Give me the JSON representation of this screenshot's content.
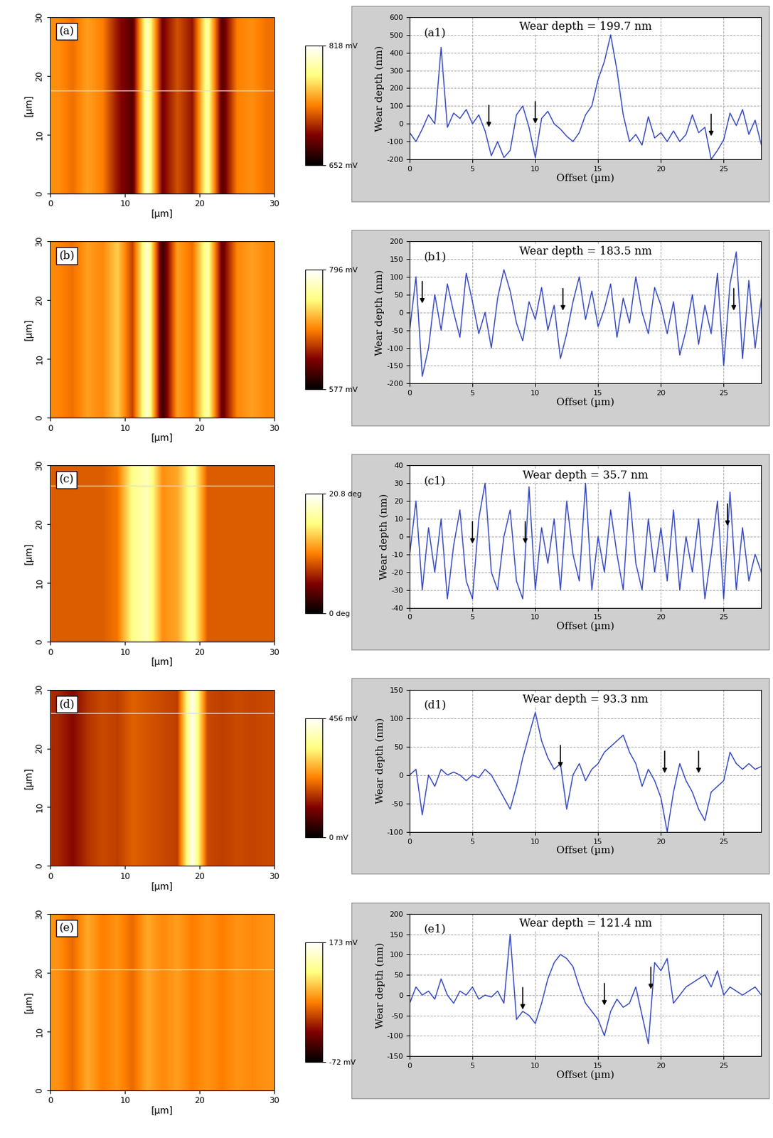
{
  "chart_data": [
    {
      "type": "heatmap",
      "label": "(a)",
      "x_label": "[µm]",
      "y_label": "[µm]",
      "xlim": [
        0,
        30
      ],
      "ylim": [
        0,
        30
      ],
      "xticks": [
        0,
        10,
        20,
        30
      ],
      "yticks": [
        0,
        10,
        20,
        30
      ],
      "cells": [
        [
          740,
          730,
          745,
          735,
          700,
          680,
          800,
          690,
          720,
          700,
          790,
          680,
          735,
          740,
          730
        ]
      ],
      "colorbar": {
        "range": [
          652,
          818
        ],
        "ticks": [
          {
            "value": 818,
            "label": "818 mV"
          },
          {
            "value": 652,
            "label": "652 mV"
          }
        ]
      },
      "scan_line": 17.5
    },
    {
      "type": "line",
      "label": "(a1)",
      "annotation": "Wear depth = 199.7 nm",
      "x_label": "Offset (µm)",
      "y_label": "Wear depth (nm)",
      "color": "#3346c0",
      "grid": true,
      "xlim": [
        0,
        28
      ],
      "ylim": [
        -200,
        600
      ],
      "xticks": [
        0,
        5,
        10,
        15,
        20,
        25
      ],
      "yticks": [
        -200,
        -100,
        0,
        100,
        200,
        300,
        400,
        500,
        600
      ],
      "x": [
        0,
        0.5,
        1,
        1.5,
        2,
        2.5,
        3,
        3.5,
        4,
        4.5,
        5,
        5.5,
        6,
        6.5,
        7,
        7.5,
        8,
        8.5,
        9,
        9.5,
        10,
        10.5,
        11,
        11.5,
        12,
        12.5,
        13,
        13.5,
        14,
        14.5,
        15,
        15.5,
        16,
        16.5,
        17,
        17.5,
        18,
        18.5,
        19,
        19.5,
        20,
        20.5,
        21,
        21.5,
        22,
        22.5,
        23,
        23.5,
        24,
        24.5,
        25,
        25.5,
        26,
        26.5,
        27,
        27.5,
        28
      ],
      "values": [
        -50,
        -100,
        -30,
        50,
        0,
        430,
        -20,
        60,
        30,
        80,
        0,
        50,
        -40,
        -180,
        -100,
        -190,
        -150,
        50,
        100,
        -20,
        -190,
        30,
        70,
        0,
        -30,
        -70,
        -100,
        -50,
        50,
        100,
        250,
        350,
        500,
        300,
        50,
        -100,
        -60,
        -120,
        40,
        -80,
        -50,
        -100,
        -40,
        -100,
        -60,
        50,
        -50,
        -20,
        -200,
        -150,
        -90,
        60,
        -10,
        80,
        -60,
        20,
        -120
      ],
      "arrows": [
        [
          6.3,
          -30
        ],
        [
          10,
          -10
        ],
        [
          24,
          -80
        ]
      ]
    },
    {
      "type": "heatmap",
      "label": "(b)",
      "x_label": "[µm]",
      "y_label": "[µm]",
      "xlim": [
        0,
        30
      ],
      "ylim": [
        0,
        30
      ],
      "xticks": [
        0,
        10,
        20,
        30
      ],
      "yticks": [
        0,
        10,
        20,
        30
      ],
      "cells": [
        [
          690,
          680,
          700,
          690,
          720,
          660,
          780,
          600,
          700,
          680,
          760,
          620,
          690,
          700,
          690
        ]
      ],
      "colorbar": {
        "range": [
          577,
          796
        ],
        "ticks": [
          {
            "value": 796,
            "label": "796 mV"
          },
          {
            "value": 577,
            "label": "577 mV"
          }
        ]
      }
    },
    {
      "type": "line",
      "label": "(b1)",
      "annotation": "Wear depth = 183.5 nm",
      "x_label": "Offset (µm)",
      "y_label": "Wear depth (nm)",
      "color": "#3346c0",
      "grid": true,
      "xlim": [
        0,
        28
      ],
      "ylim": [
        -200,
        200
      ],
      "xticks": [
        0,
        5,
        10,
        15,
        20,
        25
      ],
      "yticks": [
        -200,
        -150,
        -100,
        -50,
        0,
        50,
        100,
        150,
        200
      ],
      "x": [
        0,
        0.5,
        1,
        1.5,
        2,
        2.5,
        3,
        3.5,
        4,
        4.5,
        5,
        5.5,
        6,
        6.5,
        7,
        7.5,
        8,
        8.5,
        9,
        9.5,
        10,
        10.5,
        11,
        11.5,
        12,
        12.5,
        13,
        13.5,
        14,
        14.5,
        15,
        15.5,
        16,
        16.5,
        17,
        17.5,
        18,
        18.5,
        19,
        19.5,
        20,
        20.5,
        21,
        21.5,
        22,
        22.5,
        23,
        23.5,
        24,
        24.5,
        25,
        25.5,
        26,
        26.5,
        27,
        27.5,
        28
      ],
      "values": [
        -50,
        100,
        -180,
        -100,
        50,
        -50,
        80,
        0,
        -70,
        110,
        30,
        -60,
        0,
        -100,
        40,
        120,
        60,
        -30,
        -80,
        30,
        -20,
        70,
        -50,
        20,
        -130,
        -60,
        30,
        100,
        -20,
        60,
        -40,
        10,
        80,
        -70,
        40,
        -30,
        100,
        0,
        -60,
        70,
        20,
        -60,
        30,
        -120,
        -50,
        50,
        -90,
        20,
        -60,
        110,
        -150,
        80,
        170,
        -130,
        90,
        -100,
        40
      ],
      "arrows": [
        [
          1,
          20
        ],
        [
          12.2,
          0
        ],
        [
          25.8,
          0
        ]
      ]
    },
    {
      "type": "heatmap",
      "label": "(c)",
      "x_label": "[µm]",
      "y_label": "[µm]",
      "xlim": [
        0,
        30
      ],
      "ylim": [
        0,
        30
      ],
      "xticks": [
        0,
        10,
        20,
        30
      ],
      "yticks": [
        0,
        10,
        20,
        30
      ],
      "cells": [
        [
          9,
          9,
          9,
          9,
          10,
          16,
          18,
          11,
          12,
          17,
          9,
          9,
          9,
          9,
          9
        ]
      ],
      "colorbar": {
        "range": [
          0,
          20.8
        ],
        "ticks": [
          {
            "value": 20.8,
            "label": "20.8 deg"
          },
          {
            "value": 0,
            "label": "0 deg"
          }
        ]
      },
      "scan_line": 26.5
    },
    {
      "type": "line",
      "label": "(c1)",
      "annotation": "Wear depth = 35.7 nm",
      "x_label": "Offset (µm)",
      "y_label": "Wear depth (nm)",
      "color": "#3346c0",
      "grid": true,
      "xlim": [
        0,
        28
      ],
      "ylim": [
        -40,
        40
      ],
      "xticks": [
        0,
        5,
        10,
        15,
        20,
        25
      ],
      "yticks": [
        -40,
        -30,
        -20,
        -10,
        0,
        10,
        20,
        30,
        40
      ],
      "x": [
        0,
        0.5,
        1,
        1.5,
        2,
        2.5,
        3,
        3.5,
        4,
        4.5,
        5,
        5.5,
        6,
        6.5,
        7,
        7.5,
        8,
        8.5,
        9,
        9.5,
        10,
        10.5,
        11,
        11.5,
        12,
        12.5,
        13,
        13.5,
        14,
        14.5,
        15,
        15.5,
        16,
        16.5,
        17,
        17.5,
        18,
        18.5,
        19,
        19.5,
        20,
        20.5,
        21,
        21.5,
        22,
        22.5,
        23,
        23.5,
        24,
        24.5,
        25,
        25.5,
        26,
        26.5,
        27,
        27.5,
        28
      ],
      "values": [
        -10,
        20,
        -30,
        5,
        -20,
        10,
        -35,
        -5,
        15,
        -25,
        -35,
        10,
        30,
        -20,
        -30,
        0,
        15,
        -25,
        -35,
        28,
        -30,
        5,
        -15,
        10,
        -30,
        20,
        -10,
        -25,
        30,
        -30,
        0,
        -20,
        15,
        -10,
        -30,
        25,
        -15,
        -30,
        10,
        -20,
        5,
        -25,
        15,
        -30,
        0,
        -20,
        10,
        -35,
        -10,
        20,
        -35,
        25,
        -30,
        5,
        -25,
        -10,
        -20
      ],
      "arrows": [
        [
          5,
          -5
        ],
        [
          9.2,
          -5
        ],
        [
          25.3,
          5
        ]
      ]
    },
    {
      "type": "heatmap",
      "label": "(d)",
      "x_label": "[µm]",
      "y_label": "[µm]",
      "xlim": [
        0,
        30
      ],
      "ylim": [
        0,
        30
      ],
      "xticks": [
        0,
        10,
        20,
        30
      ],
      "yticks": [
        0,
        10,
        20,
        30
      ],
      "cells": [
        [
          150,
          120,
          160,
          180,
          170,
          200,
          190,
          180,
          170,
          440,
          180,
          170,
          180,
          175,
          180
        ]
      ],
      "colorbar": {
        "range": [
          0,
          456
        ],
        "ticks": [
          {
            "value": 456,
            "label": "456 mV"
          },
          {
            "value": 0,
            "label": "0 mV"
          }
        ]
      },
      "scan_line": 26
    },
    {
      "type": "line",
      "label": "(d1)",
      "annotation": "Wear depth = 93.3 nm",
      "x_label": "Offset (µm)",
      "y_label": "Wear depth (nm)",
      "color": "#3346c0",
      "grid": true,
      "xlim": [
        0,
        28
      ],
      "ylim": [
        -100,
        150
      ],
      "xticks": [
        0,
        5,
        10,
        15,
        20,
        25
      ],
      "yticks": [
        -100,
        -50,
        0,
        50,
        100,
        150
      ],
      "x": [
        0,
        0.5,
        1,
        1.5,
        2,
        2.5,
        3,
        3.5,
        4,
        4.5,
        5,
        5.5,
        6,
        6.5,
        7,
        7.5,
        8,
        8.5,
        9,
        9.5,
        10,
        10.5,
        11,
        11.5,
        12,
        12.5,
        13,
        13.5,
        14,
        14.5,
        15,
        15.5,
        16,
        16.5,
        17,
        17.5,
        18,
        18.5,
        19,
        19.5,
        20,
        20.5,
        21,
        21.5,
        22,
        22.5,
        23,
        23.5,
        24,
        24.5,
        25,
        25.5,
        26,
        26.5,
        27,
        27.5,
        28
      ],
      "values": [
        0,
        10,
        -70,
        0,
        -20,
        10,
        0,
        5,
        0,
        -10,
        0,
        -5,
        10,
        0,
        -20,
        -40,
        -60,
        -20,
        30,
        70,
        110,
        60,
        30,
        10,
        20,
        -60,
        0,
        20,
        -10,
        10,
        20,
        40,
        50,
        60,
        70,
        40,
        20,
        -20,
        10,
        -10,
        -40,
        -100,
        -30,
        20,
        -10,
        -30,
        -60,
        -80,
        -30,
        -20,
        -10,
        40,
        20,
        10,
        20,
        10,
        15
      ],
      "arrows": [
        [
          12,
          10
        ],
        [
          20.3,
          0
        ],
        [
          23,
          0
        ]
      ]
    },
    {
      "type": "heatmap",
      "label": "(e)",
      "x_label": "[µm]",
      "y_label": "[µm]",
      "xlim": [
        0,
        30
      ],
      "ylim": [
        0,
        30
      ],
      "xticks": [
        0,
        10,
        20,
        30
      ],
      "yticks": [
        0,
        10,
        20,
        30
      ],
      "cells": [
        [
          60,
          40,
          70,
          50,
          60,
          40,
          70,
          55,
          65,
          50,
          60,
          50,
          60,
          55,
          60
        ]
      ],
      "colorbar": {
        "range": [
          -72,
          173
        ],
        "ticks": [
          {
            "value": 173,
            "label": "173 mV"
          },
          {
            "value": -72,
            "label": "-72 mV"
          }
        ]
      },
      "scan_line": 20.5
    },
    {
      "type": "line",
      "label": "(e1)",
      "annotation": "Wear depth = 121.4 nm",
      "x_label": "Offset (µm)",
      "y_label": "Wear depth (nm)",
      "color": "#3346c0",
      "grid": true,
      "xlim": [
        0,
        28
      ],
      "ylim": [
        -150,
        200
      ],
      "xticks": [
        0,
        5,
        10,
        15,
        20,
        25
      ],
      "yticks": [
        -150,
        -100,
        -50,
        0,
        50,
        100,
        150,
        200
      ],
      "x": [
        0,
        0.5,
        1,
        1.5,
        2,
        2.5,
        3,
        3.5,
        4,
        4.5,
        5,
        5.5,
        6,
        6.5,
        7,
        7.5,
        8,
        8.5,
        9,
        9.5,
        10,
        10.5,
        11,
        11.5,
        12,
        12.5,
        13,
        13.5,
        14,
        14.5,
        15,
        15.5,
        16,
        16.5,
        17,
        17.5,
        18,
        18.5,
        19,
        19.5,
        20,
        20.5,
        21,
        21.5,
        22,
        22.5,
        23,
        23.5,
        24,
        24.5,
        25,
        25.5,
        26,
        26.5,
        27,
        27.5,
        28
      ],
      "values": [
        -20,
        20,
        0,
        10,
        -10,
        40,
        0,
        -20,
        10,
        0,
        20,
        -10,
        0,
        -5,
        10,
        -20,
        150,
        -60,
        -40,
        -50,
        -70,
        -20,
        40,
        80,
        100,
        90,
        70,
        20,
        -20,
        -40,
        -60,
        -100,
        -40,
        -10,
        -30,
        -20,
        20,
        -50,
        -120,
        80,
        60,
        90,
        -20,
        0,
        20,
        30,
        40,
        50,
        20,
        60,
        0,
        20,
        10,
        0,
        10,
        20,
        0
      ],
      "arrows": [
        [
          9,
          -40
        ],
        [
          15.5,
          -30
        ],
        [
          19.2,
          10
        ]
      ]
    }
  ]
}
